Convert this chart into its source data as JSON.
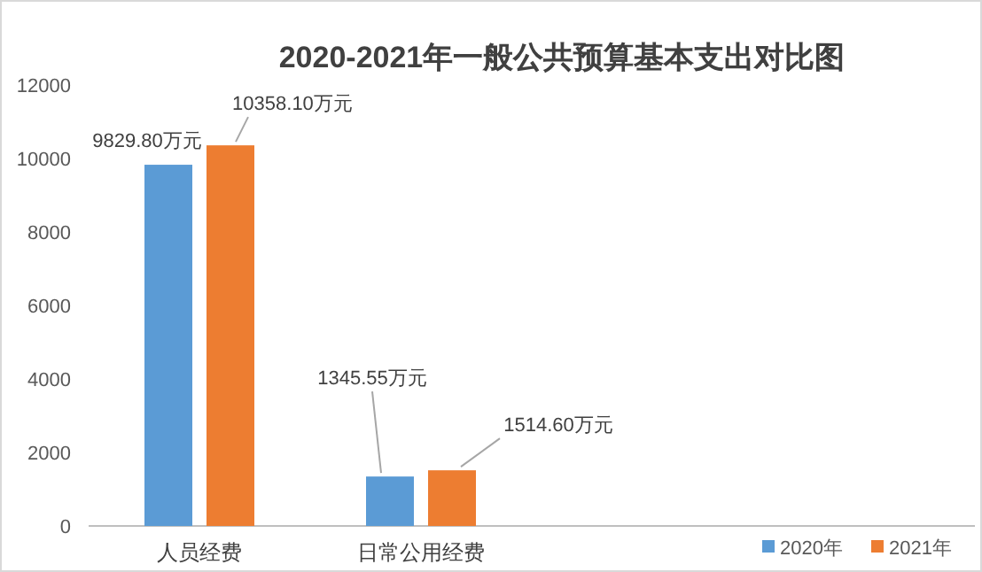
{
  "chart_data": {
    "type": "bar",
    "title": "2020-2021年一般公共预算基本支出对比图",
    "categories": [
      "人员经费",
      "日常公用经费",
      null,
      null
    ],
    "series": [
      {
        "name": "2020年",
        "color": "#5b9bd5",
        "values": [
          9829.8,
          1345.55,
          null,
          null
        ],
        "value_labels": [
          "9829.80万元",
          "1345.55万元",
          null,
          null
        ]
      },
      {
        "name": "2021年",
        "color": "#ed7d31",
        "values": [
          10358.1,
          1514.6,
          null,
          null
        ],
        "value_labels": [
          "10358.10万元",
          "1514.60万元",
          null,
          null
        ]
      }
    ],
    "ylim": [
      0,
      12000
    ],
    "yticks": [
      0,
      2000,
      4000,
      6000,
      8000,
      10000,
      12000
    ],
    "grid": false,
    "legend": "bottom right"
  }
}
